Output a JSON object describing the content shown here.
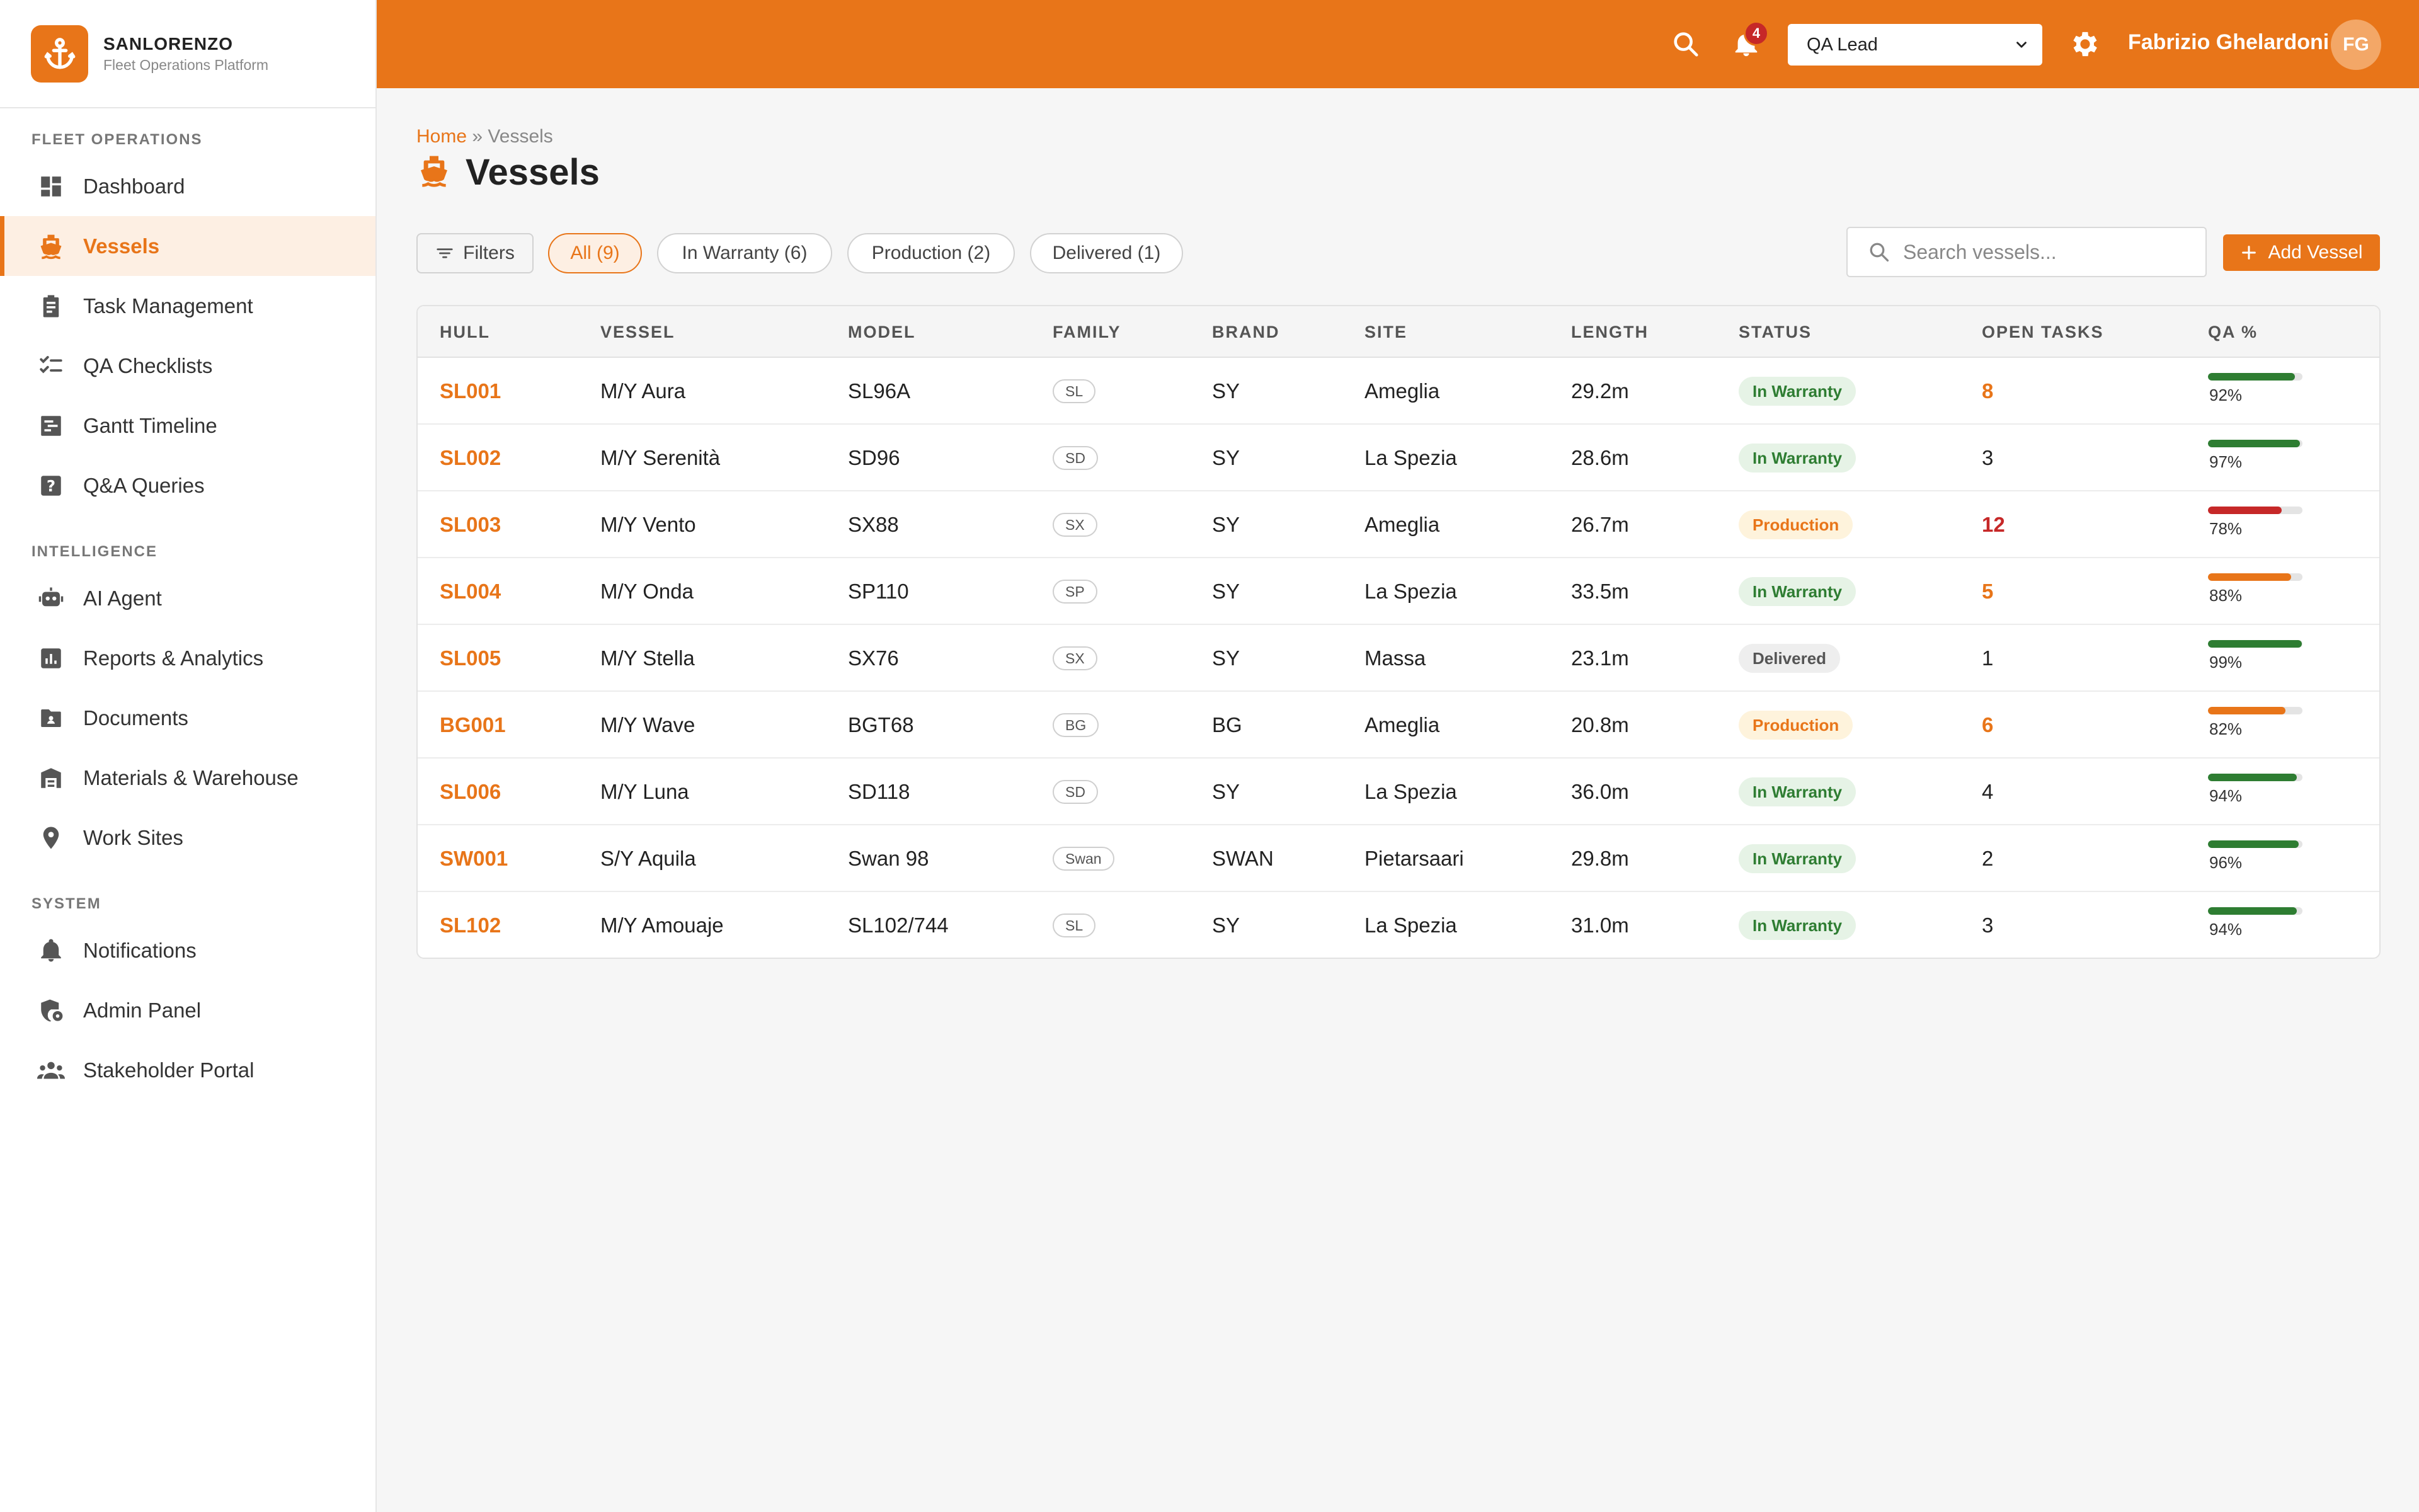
{
  "brand": {
    "name": "SANLORENZO",
    "subtitle": "Fleet Operations Platform"
  },
  "sidebar": {
    "sections": [
      {
        "label": "FLEET OPERATIONS",
        "items": [
          {
            "label": "Dashboard",
            "icon": "dashboard-icon",
            "active": false
          },
          {
            "label": "Vessels",
            "icon": "ship-icon",
            "active": true
          },
          {
            "label": "Task Management",
            "icon": "clipboard-icon",
            "active": false
          },
          {
            "label": "QA Checklists",
            "icon": "checklist-icon",
            "active": false
          },
          {
            "label": "Gantt Timeline",
            "icon": "gantt-icon",
            "active": false
          },
          {
            "label": "Q&A Queries",
            "icon": "question-icon",
            "active": false
          }
        ]
      },
      {
        "label": "INTELLIGENCE",
        "items": [
          {
            "label": "AI Agent",
            "icon": "robot-icon",
            "active": false
          },
          {
            "label": "Reports & Analytics",
            "icon": "chart-icon",
            "active": false
          },
          {
            "label": "Documents",
            "icon": "folder-icon",
            "active": false
          },
          {
            "label": "Materials & Warehouse",
            "icon": "warehouse-icon",
            "active": false
          },
          {
            "label": "Work Sites",
            "icon": "location-icon",
            "active": false
          }
        ]
      },
      {
        "label": "SYSTEM",
        "items": [
          {
            "label": "Notifications",
            "icon": "bell-icon",
            "active": false
          },
          {
            "label": "Admin Panel",
            "icon": "admin-shield-icon",
            "active": false
          },
          {
            "label": "Stakeholder Portal",
            "icon": "people-icon",
            "active": false
          }
        ]
      }
    ]
  },
  "header": {
    "notification_count": "4",
    "role": "QA Lead",
    "user_name": "Fabrizio Ghelardoni",
    "user_initials": "FG"
  },
  "breadcrumb": {
    "home": "Home",
    "separator": "»",
    "current": "Vessels"
  },
  "page": {
    "title": "Vessels"
  },
  "filters": {
    "filters_label": "Filters",
    "chips": [
      "All (9)",
      "In Warranty (6)",
      "Production (2)",
      "Delivered (1)"
    ],
    "active_chip": 0
  },
  "search": {
    "placeholder": "Search vessels..."
  },
  "add_button": {
    "label": "Add Vessel"
  },
  "table": {
    "columns": [
      "HULL",
      "VESSEL",
      "MODEL",
      "FAMILY",
      "BRAND",
      "SITE",
      "LENGTH",
      "STATUS",
      "OPEN TASKS",
      "QA %"
    ],
    "rows": [
      {
        "hull": "SL001",
        "vessel": "M/Y Aura",
        "model": "SL96A",
        "family": "SL",
        "brand": "SY",
        "site": "Ameglia",
        "length": "29.2m",
        "status": "In Warranty",
        "status_kind": "warranty",
        "tasks": "8",
        "tasks_level": "orange",
        "qa": "92%",
        "qa_value": 92,
        "qa_color": "#2e7d32"
      },
      {
        "hull": "SL002",
        "vessel": "M/Y Serenità",
        "model": "SD96",
        "family": "SD",
        "brand": "SY",
        "site": "La Spezia",
        "length": "28.6m",
        "status": "In Warranty",
        "status_kind": "warranty",
        "tasks": "3",
        "tasks_level": "normal",
        "qa": "97%",
        "qa_value": 97,
        "qa_color": "#2e7d32"
      },
      {
        "hull": "SL003",
        "vessel": "M/Y Vento",
        "model": "SX88",
        "family": "SX",
        "brand": "SY",
        "site": "Ameglia",
        "length": "26.7m",
        "status": "Production",
        "status_kind": "production",
        "tasks": "12",
        "tasks_level": "red",
        "qa": "78%",
        "qa_value": 78,
        "qa_color": "#c62828"
      },
      {
        "hull": "SL004",
        "vessel": "M/Y Onda",
        "model": "SP110",
        "family": "SP",
        "brand": "SY",
        "site": "La Spezia",
        "length": "33.5m",
        "status": "In Warranty",
        "status_kind": "warranty",
        "tasks": "5",
        "tasks_level": "orange",
        "qa": "88%",
        "qa_value": 88,
        "qa_color": "#e87519"
      },
      {
        "hull": "SL005",
        "vessel": "M/Y Stella",
        "model": "SX76",
        "family": "SX",
        "brand": "SY",
        "site": "Massa",
        "length": "23.1m",
        "status": "Delivered",
        "status_kind": "delivered",
        "tasks": "1",
        "tasks_level": "normal",
        "qa": "99%",
        "qa_value": 99,
        "qa_color": "#2e7d32"
      },
      {
        "hull": "BG001",
        "vessel": "M/Y Wave",
        "model": "BGT68",
        "family": "BG",
        "brand": "BG",
        "site": "Ameglia",
        "length": "20.8m",
        "status": "Production",
        "status_kind": "production",
        "tasks": "6",
        "tasks_level": "orange",
        "qa": "82%",
        "qa_value": 82,
        "qa_color": "#e87519"
      },
      {
        "hull": "SL006",
        "vessel": "M/Y Luna",
        "model": "SD118",
        "family": "SD",
        "brand": "SY",
        "site": "La Spezia",
        "length": "36.0m",
        "status": "In Warranty",
        "status_kind": "warranty",
        "tasks": "4",
        "tasks_level": "normal",
        "qa": "94%",
        "qa_value": 94,
        "qa_color": "#2e7d32"
      },
      {
        "hull": "SW001",
        "vessel": "S/Y Aquila",
        "model": "Swan 98",
        "family": "Swan",
        "brand": "SWAN",
        "site": "Pietarsaari",
        "length": "29.8m",
        "status": "In Warranty",
        "status_kind": "warranty",
        "tasks": "2",
        "tasks_level": "normal",
        "qa": "96%",
        "qa_value": 96,
        "qa_color": "#2e7d32"
      },
      {
        "hull": "SL102",
        "vessel": "M/Y Amouaje",
        "model": "SL102/744",
        "family": "SL",
        "brand": "SY",
        "site": "La Spezia",
        "length": "31.0m",
        "status": "In Warranty",
        "status_kind": "warranty",
        "tasks": "3",
        "tasks_level": "normal",
        "qa": "94%",
        "qa_value": 94,
        "qa_color": "#2e7d32"
      }
    ]
  },
  "colors": {
    "accent": "#e87519",
    "success": "#2e7d32",
    "danger": "#c62828"
  }
}
